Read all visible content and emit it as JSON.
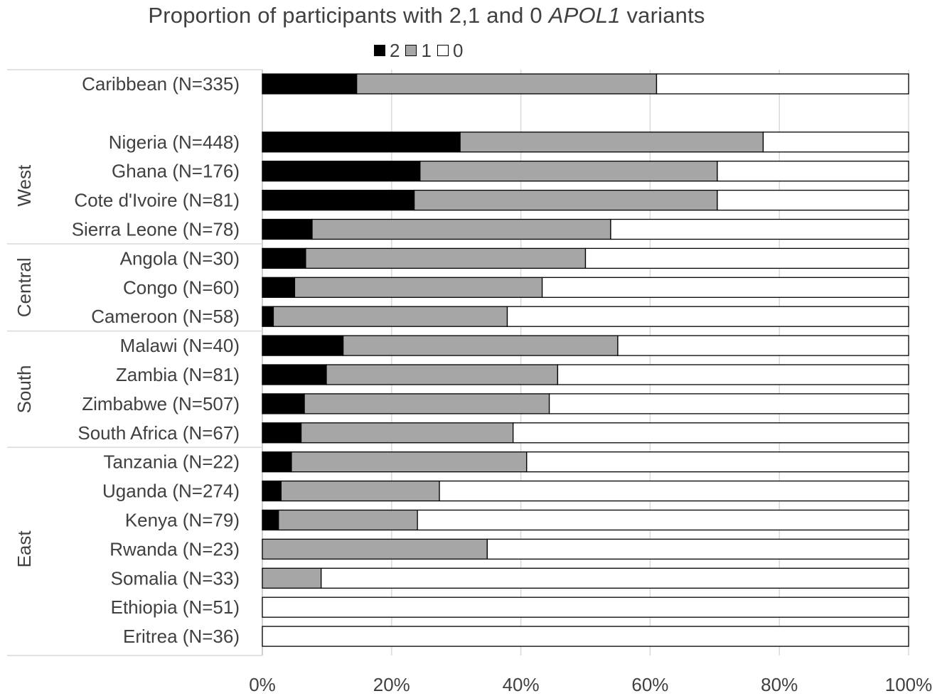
{
  "chart_data": {
    "type": "bar",
    "orientation": "horizontal",
    "stacked": true,
    "title_prefix": "Proportion of participants with 2,1 and 0 ",
    "title_italic": "APOL1",
    "title_suffix": " variants",
    "legend_position": "top",
    "series": [
      {
        "name": "2",
        "color": "#000000",
        "values": [
          14.6,
          30.6,
          24.4,
          23.5,
          7.7,
          6.7,
          5.0,
          1.7,
          12.5,
          9.9,
          6.5,
          6.0,
          4.5,
          2.9,
          2.5,
          0,
          0,
          0,
          0
        ]
      },
      {
        "name": "1",
        "color": "#a6a6a6",
        "values": [
          46.4,
          46.9,
          46.0,
          46.9,
          46.2,
          43.3,
          38.3,
          36.2,
          42.5,
          35.8,
          37.9,
          32.8,
          36.4,
          24.5,
          21.5,
          34.8,
          9.1,
          0,
          0
        ]
      },
      {
        "name": "0",
        "color": "#ffffff",
        "values": [
          39.0,
          22.5,
          29.6,
          29.6,
          46.1,
          50.0,
          56.7,
          62.1,
          45.0,
          54.3,
          55.6,
          61.2,
          59.1,
          72.6,
          76.0,
          65.2,
          90.9,
          100,
          100
        ]
      }
    ],
    "categories": [
      "Caribbean (N=335)",
      "Nigeria (N=448)",
      "Ghana (N=176)",
      "Cote d'Ivoire (N=81)",
      "Sierra Leone (N=78)",
      "Angola (N=30)",
      "Congo (N=60)",
      "Cameroon (N=58)",
      "Malawi (N=40)",
      "Zambia (N=81)",
      "Zimbabwe (N=507)",
      "South Africa (N=67)",
      "Tanzania (N=22)",
      "Uganda (N=274)",
      "Kenya (N=79)",
      "Rwanda (N=23)",
      "Somalia (N=33)",
      "Ethiopia (N=51)",
      "Eritrea (N=36)"
    ],
    "groups": [
      {
        "name": "West",
        "categories": [
          "Nigeria (N=448)",
          "Ghana (N=176)",
          "Cote d'Ivoire (N=81)",
          "Sierra Leone (N=78)"
        ]
      },
      {
        "name": "Central",
        "categories": [
          "Angola (N=30)",
          "Congo (N=60)",
          "Cameroon (N=58)"
        ]
      },
      {
        "name": "South",
        "categories": [
          "Malawi (N=40)",
          "Zambia (N=81)",
          "Zimbabwe (N=507)",
          "South Africa (N=67)"
        ]
      },
      {
        "name": "East",
        "categories": [
          "Tanzania (N=22)",
          "Uganda (N=274)",
          "Kenya (N=79)",
          "Rwanda (N=23)",
          "Somalia (N=33)",
          "Ethiopia (N=51)",
          "Eritrea (N=36)"
        ]
      }
    ],
    "xlim": [
      0,
      100
    ],
    "xticks": [
      "0%",
      "20%",
      "40%",
      "60%",
      "80%",
      "100%"
    ],
    "grid": true
  }
}
